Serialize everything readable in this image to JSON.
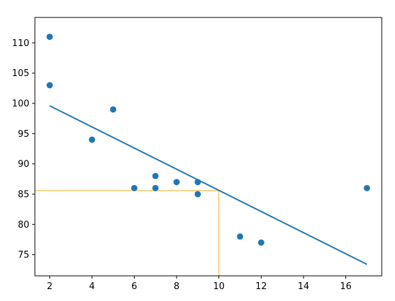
{
  "chart_data": {
    "type": "scatter",
    "title": "",
    "xlabel": "",
    "ylabel": "",
    "xlim": [
      1.3,
      17.7
    ],
    "ylim": [
      71.5,
      114.2
    ],
    "xticks": [
      2,
      4,
      6,
      8,
      10,
      12,
      14,
      16
    ],
    "yticks": [
      75,
      80,
      85,
      90,
      95,
      100,
      105,
      110
    ],
    "xtick_labels": [
      "2",
      "4",
      "6",
      "8",
      "10",
      "12",
      "14",
      "16"
    ],
    "ytick_labels": [
      "75",
      "80",
      "85",
      "90",
      "95",
      "100",
      "105",
      "110"
    ],
    "grid": false,
    "legend": "none",
    "points": {
      "x": [
        5,
        7,
        8,
        7,
        2,
        17,
        2,
        9,
        4,
        11,
        12,
        9,
        6
      ],
      "y": [
        99,
        86,
        87,
        88,
        111,
        86,
        103,
        87,
        94,
        78,
        77,
        85,
        86
      ],
      "color": "#1f77b4"
    },
    "regression_line": {
      "x": [
        2,
        17
      ],
      "y": [
        99.6,
        73.4
      ],
      "color": "#1f77b4"
    },
    "prediction_guide": {
      "x": 10,
      "y": 85.6,
      "color": "#f5b120"
    }
  }
}
